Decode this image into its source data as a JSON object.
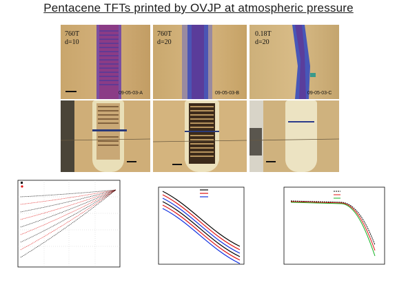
{
  "title": "Pentacene TFTs printed by OVJP at atmospheric pressure",
  "micrographs_top": [
    {
      "pressure": "760T",
      "distance": "d=10",
      "sample_id": "09-05-03-A"
    },
    {
      "pressure": "760T",
      "distance": "d=20",
      "sample_id": "09-05-03-B"
    },
    {
      "pressure": "0.18T",
      "distance": "d=20",
      "sample_id": "09-05-03-C"
    }
  ],
  "colors": {
    "photo_bg": "#c8a56c",
    "stripe_purple": "#6a4fa8",
    "stripe_blue": "#4a58b8",
    "series_black": "#000000",
    "series_red": "#e01010",
    "series_blue": "#1030e0",
    "series_green": "#10b020"
  },
  "chart_data": [
    {
      "type": "line",
      "series": [
        {
          "color": "#000000",
          "marker": "square"
        },
        {
          "color": "#e01010",
          "marker": "circle"
        }
      ]
    },
    {
      "type": "line",
      "series": [
        {
          "color": "#000000"
        },
        {
          "color": "#e01010"
        },
        {
          "color": "#1030e0"
        }
      ]
    },
    {
      "type": "line",
      "series": [
        {
          "color": "#000000",
          "style": "dashed"
        },
        {
          "color": "#e01010"
        },
        {
          "color": "#10b020"
        }
      ]
    }
  ]
}
